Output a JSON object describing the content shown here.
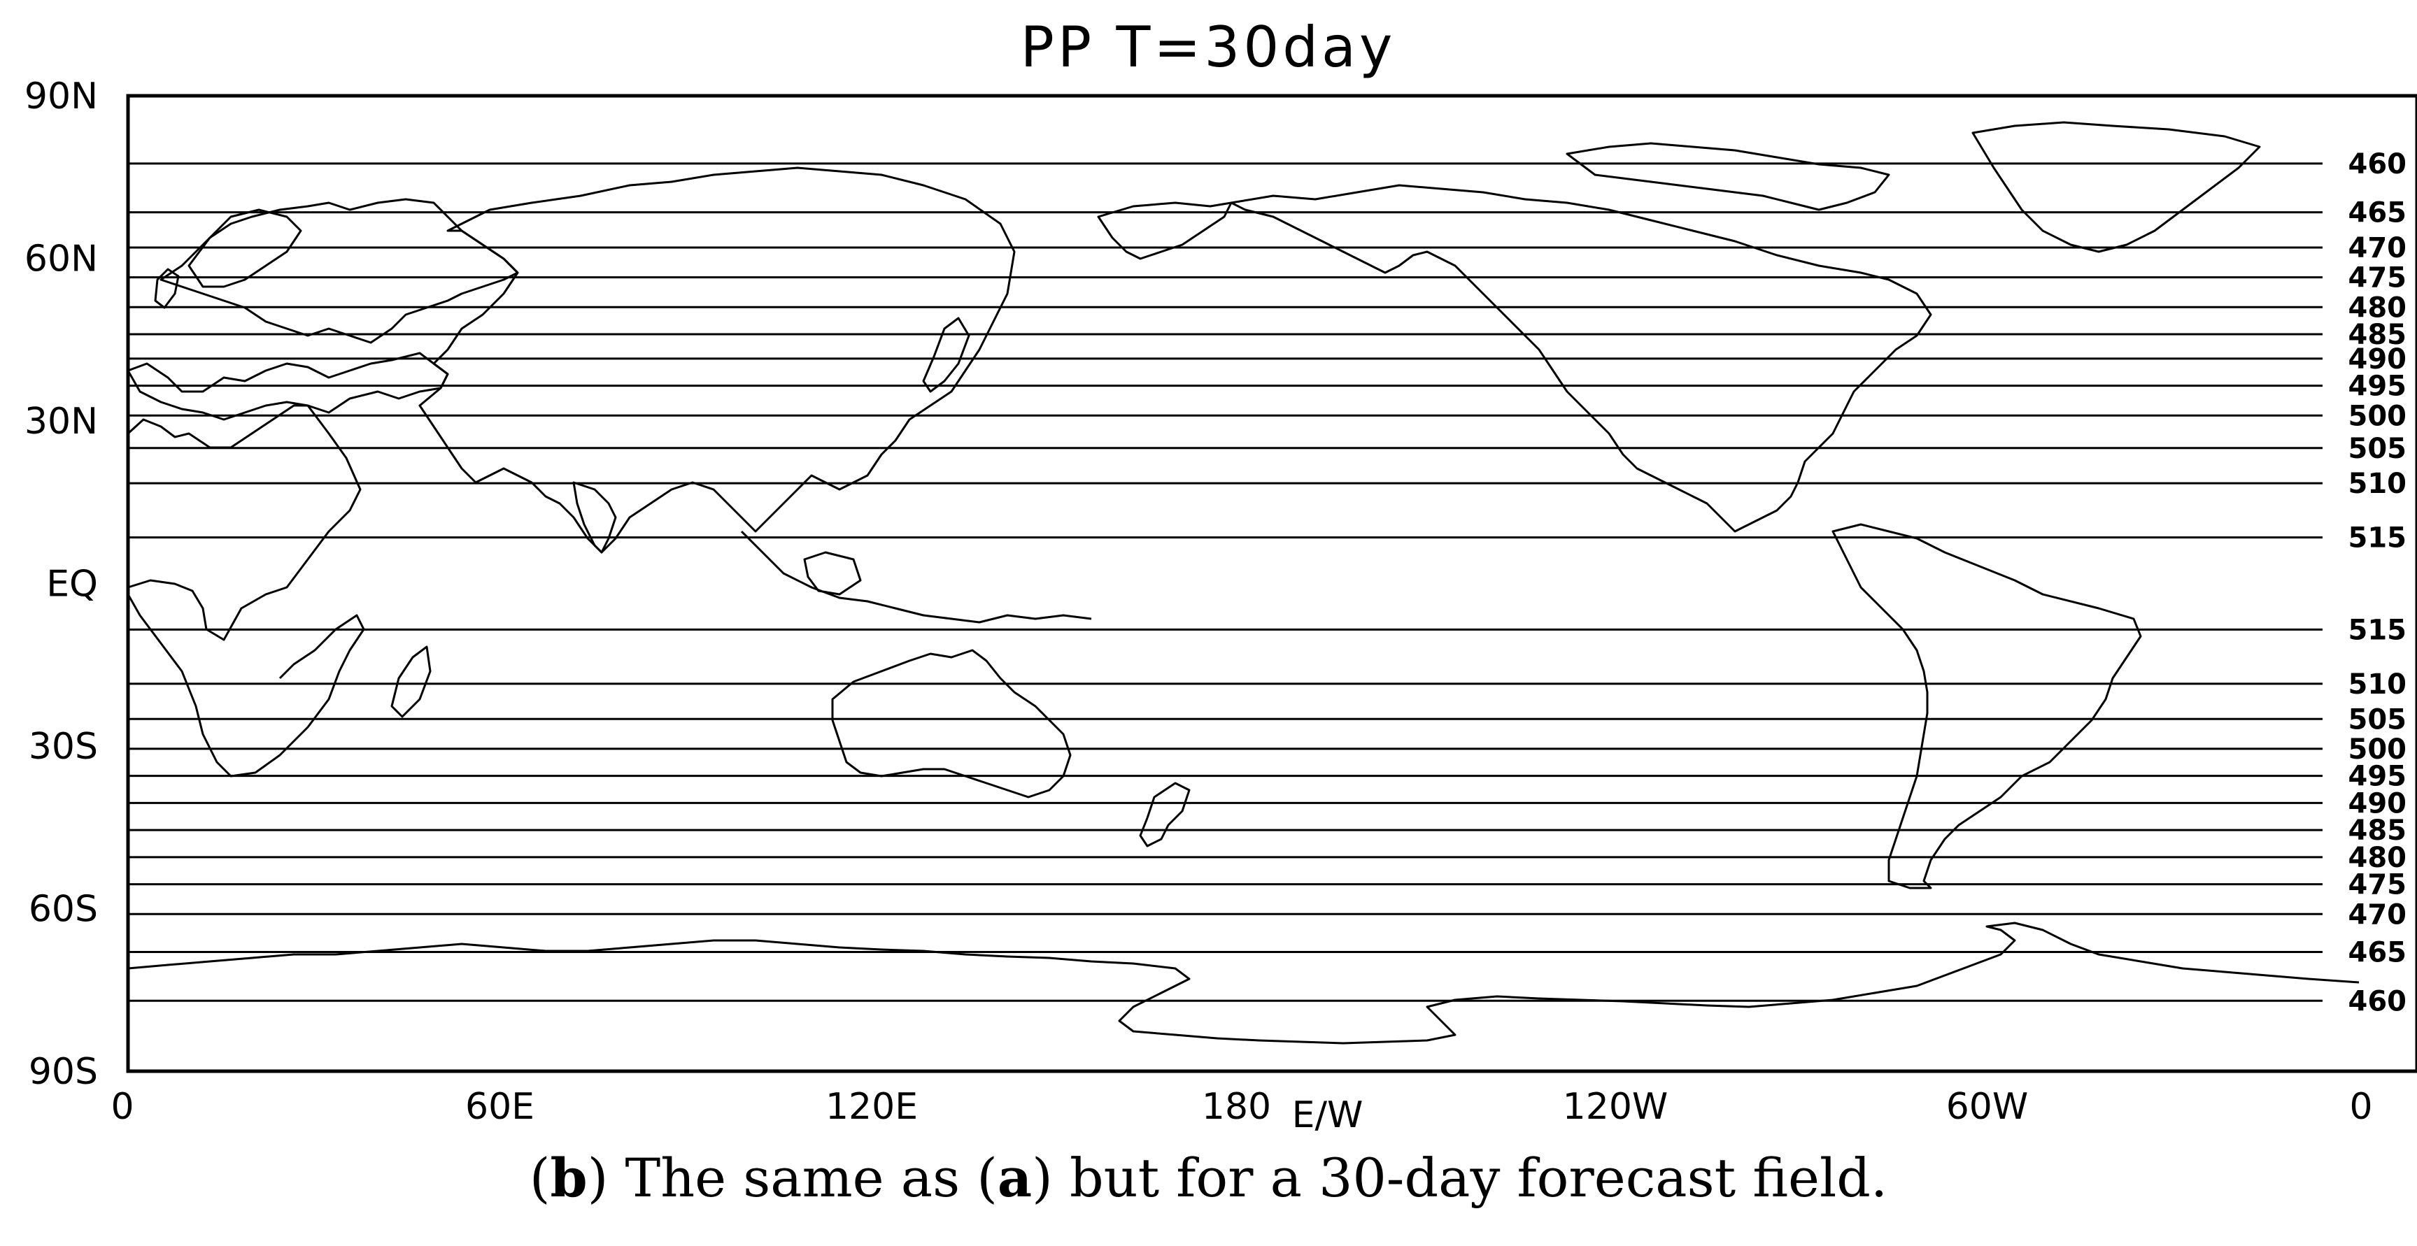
{
  "title": "PP T=30day",
  "caption": {
    "open": "(",
    "panel": "b",
    "mid": ") The same as (",
    "ref": "a",
    "close": ") but for a 30-day forecast field."
  },
  "lat_ticks": [
    {
      "lat": 90,
      "label": "90N"
    },
    {
      "lat": 60,
      "label": "60N"
    },
    {
      "lat": 30,
      "label": "30N"
    },
    {
      "lat": 0,
      "label": "EQ"
    },
    {
      "lat": -30,
      "label": "30S"
    },
    {
      "lat": -60,
      "label": "60S"
    },
    {
      "lat": -90,
      "label": "90S"
    }
  ],
  "lon_ticks": [
    {
      "lon": 0,
      "label": "0"
    },
    {
      "lon": 60,
      "label": "60E"
    },
    {
      "lon": 120,
      "label": "120E"
    },
    {
      "lon": 180,
      "label": "180"
    },
    {
      "lon": 180,
      "label": "E/W"
    },
    {
      "lon": 240,
      "label": "120W"
    },
    {
      "lon": 300,
      "label": "60W"
    },
    {
      "lon": 360,
      "label": "0"
    }
  ],
  "contours": [
    {
      "lat": 77.5,
      "label": "460"
    },
    {
      "lat": 68.5,
      "label": "465"
    },
    {
      "lat": 62,
      "label": "470"
    },
    {
      "lat": 56.5,
      "label": "475"
    },
    {
      "lat": 51,
      "label": "480"
    },
    {
      "lat": 46,
      "label": "485"
    },
    {
      "lat": 41.5,
      "label": "490"
    },
    {
      "lat": 36.5,
      "label": "495"
    },
    {
      "lat": 31,
      "label": "500"
    },
    {
      "lat": 25,
      "label": "505"
    },
    {
      "lat": 18.5,
      "label": "510"
    },
    {
      "lat": 8.5,
      "label": "515"
    },
    {
      "lat": -8.5,
      "label": "515"
    },
    {
      "lat": -18.5,
      "label": "510"
    },
    {
      "lat": -25,
      "label": "505"
    },
    {
      "lat": -30.5,
      "label": "500"
    },
    {
      "lat": -35.5,
      "label": "495"
    },
    {
      "lat": -40.5,
      "label": "490"
    },
    {
      "lat": -45.5,
      "label": "485"
    },
    {
      "lat": -50.5,
      "label": "480"
    },
    {
      "lat": -55.5,
      "label": "475"
    },
    {
      "lat": -61,
      "label": "470"
    },
    {
      "lat": -68,
      "label": "465"
    },
    {
      "lat": -77,
      "label": "460"
    }
  ]
}
